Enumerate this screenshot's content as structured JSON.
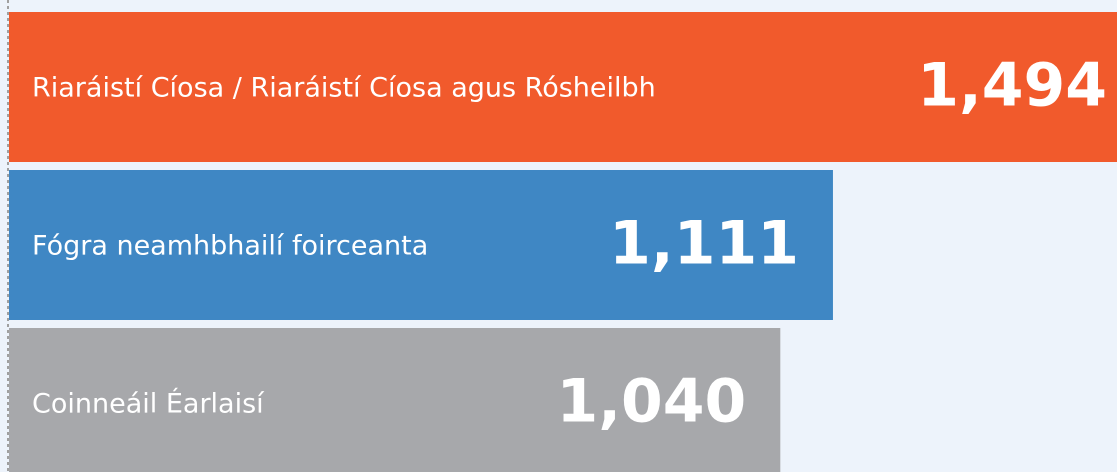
{
  "chart_data": {
    "type": "bar",
    "orientation": "horizontal",
    "categories": [
      "Riaráistí Cíosa / Riaráistí Cíosa agus Rósheilbh",
      "Fógra neamhbhailí foirceanta",
      "Coinneáil Éarlaisí"
    ],
    "values": [
      1494,
      1111,
      1040
    ],
    "value_labels": [
      "1,494",
      "1,111",
      "1,040"
    ],
    "colors": [
      "#f15a2c",
      "#3f87c4",
      "#a7a8ab"
    ]
  }
}
